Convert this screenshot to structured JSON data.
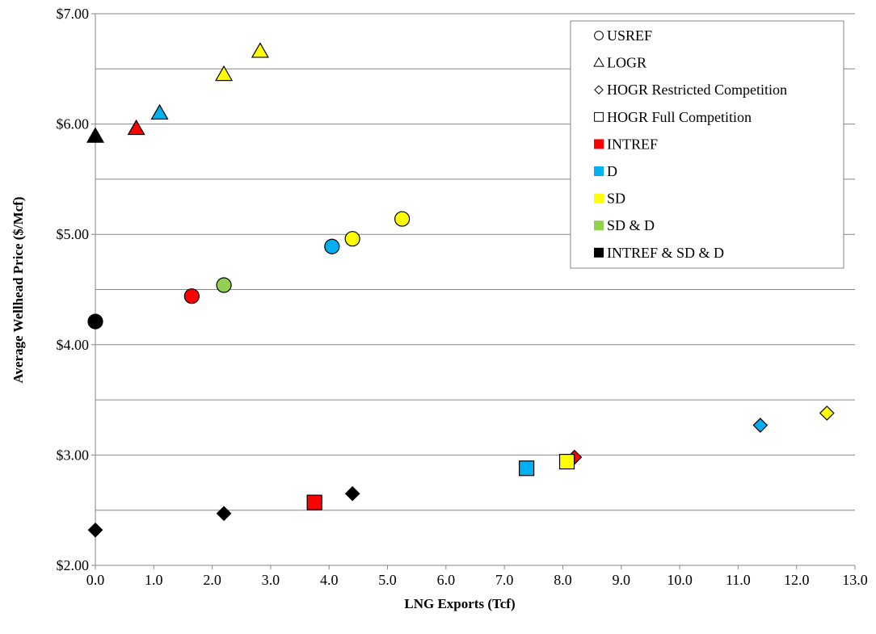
{
  "chart_data": {
    "type": "scatter",
    "title": "",
    "xlabel": "LNG Exports (Tcf)",
    "ylabel": "Average Wellhead Price ($/Mcf)",
    "xlim": [
      0,
      13
    ],
    "ylim": [
      2,
      7
    ],
    "x_ticks": [
      0,
      1,
      2,
      3,
      4,
      5,
      6,
      7,
      8,
      9,
      10,
      11,
      12,
      13
    ],
    "x_tick_labels": [
      "0.0",
      "1.0",
      "2.0",
      "3.0",
      "4.0",
      "5.0",
      "6.0",
      "7.0",
      "8.0",
      "9.0",
      "10.0",
      "11.0",
      "12.0",
      "13.0"
    ],
    "y_ticks": [
      2,
      3,
      4,
      5,
      6,
      7
    ],
    "y_tick_labels": [
      "$2.00",
      "$3.00",
      "$4.00",
      "$5.00",
      "$6.00",
      "$7.00"
    ],
    "y_minor_gridlines": [
      2.5,
      3.5,
      4.5,
      5.5,
      6.5
    ],
    "grid": "horizontal",
    "legend_position": "top-right",
    "colors": {
      "INTREF": "#ff0000",
      "D": "#00b0f0",
      "SD": "#ffff00",
      "SD & D": "#92d050",
      "INTREF & SD & D": "#000000"
    },
    "legend": [
      {
        "label": "USREF",
        "marker": "circle",
        "filled": false
      },
      {
        "label": "LOGR",
        "marker": "triangle",
        "filled": false
      },
      {
        "label": "HOGR Restricted Competition",
        "marker": "diamond",
        "filled": false
      },
      {
        "label": "HOGR Full Competition",
        "marker": "square",
        "filled": false
      },
      {
        "label": "INTREF",
        "marker": "square",
        "filled": true,
        "color": "#ff0000"
      },
      {
        "label": "D",
        "marker": "square",
        "filled": true,
        "color": "#00b0f0"
      },
      {
        "label": "SD",
        "marker": "square",
        "filled": true,
        "color": "#ffff00"
      },
      {
        "label": "SD & D",
        "marker": "square",
        "filled": true,
        "color": "#92d050"
      },
      {
        "label": "INTREF & SD & D",
        "marker": "square",
        "filled": true,
        "color": "#000000"
      }
    ],
    "series": [
      {
        "name": "USREF",
        "marker": "circle",
        "points": [
          {
            "x": 0.0,
            "y": 4.21,
            "color": "#000000"
          },
          {
            "x": 1.65,
            "y": 4.44,
            "color": "#ff0000"
          },
          {
            "x": 2.2,
            "y": 4.54,
            "color": "#92d050"
          },
          {
            "x": 4.05,
            "y": 4.89,
            "color": "#00b0f0"
          },
          {
            "x": 4.4,
            "y": 4.96,
            "color": "#ffff00"
          },
          {
            "x": 5.25,
            "y": 5.14,
            "color": "#ffff00"
          }
        ]
      },
      {
        "name": "LOGR",
        "marker": "triangle",
        "points": [
          {
            "x": 0.0,
            "y": 5.89,
            "color": "#000000"
          },
          {
            "x": 0.7,
            "y": 5.96,
            "color": "#ff0000"
          },
          {
            "x": 1.1,
            "y": 6.1,
            "color": "#00b0f0"
          },
          {
            "x": 2.2,
            "y": 6.45,
            "color": "#ffff00"
          },
          {
            "x": 2.82,
            "y": 6.66,
            "color": "#ffff00"
          }
        ]
      },
      {
        "name": "HOGR Restricted Competition",
        "marker": "diamond",
        "points": [
          {
            "x": 0.0,
            "y": 2.32,
            "color": "#000000"
          },
          {
            "x": 2.2,
            "y": 2.47,
            "color": "#000000"
          },
          {
            "x": 4.4,
            "y": 2.65,
            "color": "#000000"
          },
          {
            "x": 8.2,
            "y": 2.98,
            "color": "#ff0000"
          },
          {
            "x": 11.38,
            "y": 3.27,
            "color": "#00b0f0"
          },
          {
            "x": 12.52,
            "y": 3.38,
            "color": "#ffff00"
          }
        ]
      },
      {
        "name": "HOGR Full Competition",
        "marker": "square",
        "points": [
          {
            "x": 3.75,
            "y": 2.57,
            "color": "#ff0000"
          },
          {
            "x": 7.38,
            "y": 2.88,
            "color": "#00b0f0"
          },
          {
            "x": 8.07,
            "y": 2.94,
            "color": "#ffff00"
          }
        ]
      }
    ]
  }
}
